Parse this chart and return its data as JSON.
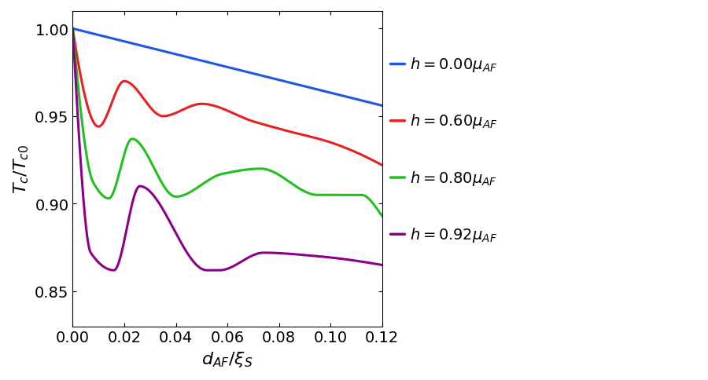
{
  "xmin": 0.0,
  "xmax": 0.12,
  "ymin": 0.83,
  "ymax": 1.01,
  "yticks": [
    0.85,
    0.9,
    0.95,
    1.0
  ],
  "xticks": [
    0.0,
    0.02,
    0.04,
    0.06,
    0.08,
    0.1,
    0.12
  ],
  "xlabel": "$d_{AF}/\\xi_S$",
  "ylabel": "$T_c/T_{c0}$",
  "labels": [
    "$h = 0.00\\mu_{AF}$",
    "$h = 0.60\\mu_{AF}$",
    "$h = 0.80\\mu_{AF}$",
    "$h = 0.92\\mu_{AF}$"
  ],
  "colors": [
    "#1E56E8",
    "#E82020",
    "#20C020",
    "#8B008B"
  ],
  "background": "#FFFFFF",
  "linewidth": 2.2
}
